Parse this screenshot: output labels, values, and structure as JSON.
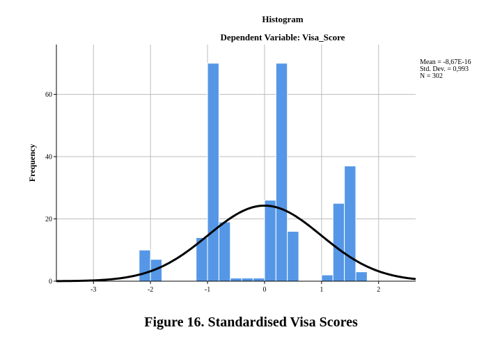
{
  "chart_data": {
    "type": "bar",
    "title": "Histogram",
    "subtitle": "Dependent Variable: Visa_Score",
    "ylabel": "Frequency",
    "xlabel": "",
    "xlim": [
      -3.65,
      2.65
    ],
    "ylim": [
      0,
      76
    ],
    "x_ticks": [
      -3,
      -2,
      -1,
      0,
      1,
      2
    ],
    "y_ticks": [
      0,
      20,
      40,
      60
    ],
    "grid": true,
    "bin_width": 0.2,
    "bars": [
      {
        "x0": -2.2,
        "x1": -2.0,
        "value": 10
      },
      {
        "x0": -2.0,
        "x1": -1.8,
        "value": 7
      },
      {
        "x0": -1.2,
        "x1": -1.0,
        "value": 14
      },
      {
        "x0": -1.0,
        "x1": -0.8,
        "value": 70
      },
      {
        "x0": -0.8,
        "x1": -0.6,
        "value": 19
      },
      {
        "x0": -0.6,
        "x1": -0.4,
        "value": 1
      },
      {
        "x0": -0.4,
        "x1": -0.2,
        "value": 1
      },
      {
        "x0": -0.2,
        "x1": 0.0,
        "value": 1
      },
      {
        "x0": 0.0,
        "x1": 0.2,
        "value": 26
      },
      {
        "x0": 0.2,
        "x1": 0.4,
        "value": 70
      },
      {
        "x0": 0.4,
        "x1": 0.6,
        "value": 16
      },
      {
        "x0": 1.0,
        "x1": 1.2,
        "value": 2
      },
      {
        "x0": 1.2,
        "x1": 1.4,
        "value": 25
      },
      {
        "x0": 1.4,
        "x1": 1.6,
        "value": 37
      },
      {
        "x0": 1.6,
        "x1": 1.8,
        "value": 3
      }
    ],
    "normal_curve": {
      "mean": -8.67e-16,
      "sd": 0.993,
      "n": 302
    },
    "stats": {
      "mean": "Mean = -8,67E-16",
      "sd": "Std. Dev. = 0,993",
      "n": "N = 302"
    },
    "colors": {
      "bar": "#5597e6",
      "curve": "#000000",
      "grid": "#bdbdbd"
    }
  },
  "caption": "Figure 16. Standardised Visa Scores"
}
